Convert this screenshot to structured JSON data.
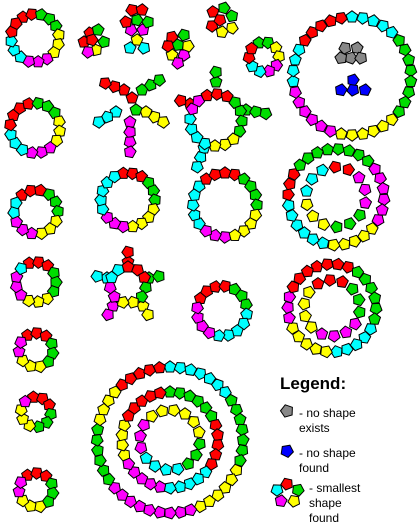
{
  "colors": {
    "red": "#ff0000",
    "green": "#00dd00",
    "yellow": "#ffff00",
    "magenta": "#ff00ff",
    "cyan": "#00ffff",
    "gray": "#888888",
    "blue": "#0000ff"
  },
  "legend": {
    "title": "Legend:",
    "no_shape_exists": "- no shape\nexists",
    "no_shape_found": "- no shape\nfound",
    "smallest_shape_found": "- smallest\nshape\nfound"
  }
}
